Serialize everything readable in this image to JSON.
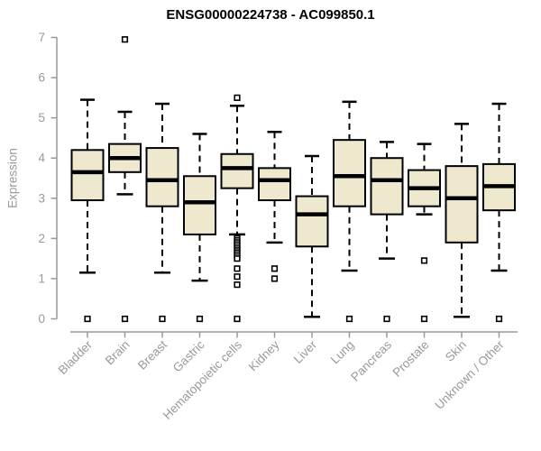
{
  "chart_data": {
    "type": "boxplot",
    "title": "ENSG00000224738 - AC099850.1",
    "ylabel": "Expression",
    "xlabel": "",
    "ylim": [
      0,
      7
    ],
    "yticks": [
      0,
      1,
      2,
      3,
      4,
      5,
      6,
      7
    ],
    "grid": false,
    "legend": false,
    "colors": {
      "box_fill": "#EDE8CE",
      "box_stroke": "#000000",
      "median": "#000000",
      "whisker": "#000000",
      "outlier_fill": "#ffffff",
      "axis": "#999999",
      "tick_label": "#999999",
      "title": "#000000",
      "background": "#ffffff"
    },
    "categories": [
      "Bladder",
      "Brain",
      "Breast",
      "Gastric",
      "Hematopoietic cells",
      "Kidney",
      "Liver",
      "Lung",
      "Pancreas",
      "Prostate",
      "Skin",
      "Unknown / Other"
    ],
    "series": [
      {
        "category": "Bladder",
        "low": 1.15,
        "q1": 2.95,
        "median": 3.65,
        "q3": 4.2,
        "high": 5.45,
        "outliers": [
          0
        ]
      },
      {
        "category": "Brain",
        "low": 3.1,
        "q1": 3.65,
        "median": 4.0,
        "q3": 4.35,
        "high": 5.15,
        "outliers": [
          6.95,
          0
        ]
      },
      {
        "category": "Breast",
        "low": 1.15,
        "q1": 2.8,
        "median": 3.45,
        "q3": 4.25,
        "high": 5.35,
        "outliers": [
          0
        ]
      },
      {
        "category": "Gastric",
        "low": 0.95,
        "q1": 2.1,
        "median": 2.9,
        "q3": 3.55,
        "high": 4.6,
        "outliers": [
          0
        ]
      },
      {
        "category": "Hematopoietic cells",
        "low": 2.1,
        "q1": 3.25,
        "median": 3.75,
        "q3": 4.1,
        "high": 5.3,
        "outliers": [
          5.5,
          2.0,
          1.95,
          1.9,
          1.85,
          1.8,
          1.75,
          1.7,
          1.65,
          1.6,
          1.55,
          1.5,
          1.25,
          1.05,
          0.85,
          0
        ]
      },
      {
        "category": "Kidney",
        "low": 1.9,
        "q1": 2.95,
        "median": 3.45,
        "q3": 3.75,
        "high": 4.65,
        "outliers": [
          1.25,
          1.0
        ]
      },
      {
        "category": "Liver",
        "low": 0.05,
        "q1": 1.8,
        "median": 2.6,
        "q3": 3.05,
        "high": 4.05,
        "outliers": []
      },
      {
        "category": "Lung",
        "low": 1.2,
        "q1": 2.8,
        "median": 3.55,
        "q3": 4.45,
        "high": 5.4,
        "outliers": [
          0
        ]
      },
      {
        "category": "Pancreas",
        "low": 1.5,
        "q1": 2.6,
        "median": 3.45,
        "q3": 4.0,
        "high": 4.4,
        "outliers": [
          0
        ]
      },
      {
        "category": "Prostate",
        "low": 2.6,
        "q1": 2.8,
        "median": 3.25,
        "q3": 3.7,
        "high": 4.35,
        "outliers": [
          1.45,
          0
        ]
      },
      {
        "category": "Skin",
        "low": 0.05,
        "q1": 1.9,
        "median": 3.0,
        "q3": 3.8,
        "high": 4.85,
        "outliers": []
      },
      {
        "category": "Unknown / Other",
        "low": 1.2,
        "q1": 2.7,
        "median": 3.3,
        "q3": 3.85,
        "high": 5.35,
        "outliers": [
          0
        ]
      }
    ]
  }
}
